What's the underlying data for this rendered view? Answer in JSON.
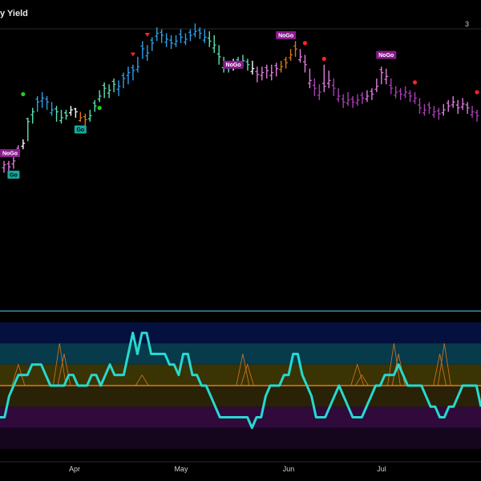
{
  "header": {
    "title": "y Yield",
    "right_label": "3"
  },
  "chart_data": [
    {
      "type": "price-bars",
      "title": "y Yield",
      "x_ticks": [
        "Apr",
        "May",
        "Jun",
        "Jul"
      ],
      "y_range": [
        0,
        100
      ],
      "bars": [
        {
          "c": 23,
          "h": 25,
          "l": 19,
          "color": "#e27be0"
        },
        {
          "c": 22,
          "h": 25,
          "l": 19,
          "color": "#e27be0"
        },
        {
          "c": 25,
          "h": 28,
          "l": 21,
          "color": "#e27be0"
        },
        {
          "c": 30,
          "h": 33,
          "l": 27,
          "color": "#e27be0"
        },
        {
          "c": 34,
          "h": 36,
          "l": 31,
          "color": "#ffffff"
        },
        {
          "c": 45,
          "h": 47,
          "l": 35,
          "color": "#5be3b4"
        },
        {
          "c": 50,
          "h": 52,
          "l": 44,
          "color": "#5be3b4"
        },
        {
          "c": 55,
          "h": 58,
          "l": 50,
          "color": "#2f9ee8"
        },
        {
          "c": 57,
          "h": 60,
          "l": 52,
          "color": "#2f9ee8"
        },
        {
          "c": 55,
          "h": 58,
          "l": 51,
          "color": "#2f9ee8"
        },
        {
          "c": 51,
          "h": 55,
          "l": 48,
          "color": "#2f9ee8"
        },
        {
          "c": 50,
          "h": 53,
          "l": 45,
          "color": "#5be3b4"
        },
        {
          "c": 47,
          "h": 51,
          "l": 44,
          "color": "#5be3b4"
        },
        {
          "c": 48,
          "h": 51,
          "l": 46,
          "color": "#5be3b4"
        },
        {
          "c": 51,
          "h": 53,
          "l": 48,
          "color": "#ffffff"
        },
        {
          "c": 50,
          "h": 52,
          "l": 47,
          "color": "#ffffff"
        },
        {
          "c": 47,
          "h": 50,
          "l": 45,
          "color": "#d9771e"
        },
        {
          "c": 46,
          "h": 49,
          "l": 43,
          "color": "#d9771e"
        },
        {
          "c": 48,
          "h": 51,
          "l": 45,
          "color": "#5be3b4"
        },
        {
          "c": 53,
          "h": 56,
          "l": 50,
          "color": "#5be3b4"
        },
        {
          "c": 58,
          "h": 61,
          "l": 55,
          "color": "#5be3b4"
        },
        {
          "c": 62,
          "h": 65,
          "l": 57,
          "color": "#5be3b4"
        },
        {
          "c": 61,
          "h": 64,
          "l": 57,
          "color": "#5be3b4"
        },
        {
          "c": 64,
          "h": 67,
          "l": 60,
          "color": "#5be3b4"
        },
        {
          "c": 63,
          "h": 66,
          "l": 58,
          "color": "#2f9ee8"
        },
        {
          "c": 67,
          "h": 70,
          "l": 62,
          "color": "#2f9ee8"
        },
        {
          "c": 70,
          "h": 73,
          "l": 64,
          "color": "#2f9ee8"
        },
        {
          "c": 71,
          "h": 74,
          "l": 66,
          "color": "#2f9ee8"
        },
        {
          "c": 73,
          "h": 78,
          "l": 70,
          "color": "#2f9ee8"
        },
        {
          "c": 82,
          "h": 86,
          "l": 77,
          "color": "#2f9ee8"
        },
        {
          "c": 80,
          "h": 84,
          "l": 76,
          "color": "#2f9ee8"
        },
        {
          "c": 85,
          "h": 88,
          "l": 81,
          "color": "#2f9ee8"
        },
        {
          "c": 90,
          "h": 93,
          "l": 86,
          "color": "#2f9ee8"
        },
        {
          "c": 89,
          "h": 92,
          "l": 85,
          "color": "#2f9ee8"
        },
        {
          "c": 87,
          "h": 90,
          "l": 83,
          "color": "#2f9ee8"
        },
        {
          "c": 85,
          "h": 89,
          "l": 82,
          "color": "#2f9ee8"
        },
        {
          "c": 86,
          "h": 89,
          "l": 83,
          "color": "#2f9ee8"
        },
        {
          "c": 88,
          "h": 92,
          "l": 85,
          "color": "#2f9ee8"
        },
        {
          "c": 87,
          "h": 90,
          "l": 84,
          "color": "#2f9ee8"
        },
        {
          "c": 89,
          "h": 92,
          "l": 86,
          "color": "#2f9ee8"
        },
        {
          "c": 91,
          "h": 95,
          "l": 88,
          "color": "#2f9ee8"
        },
        {
          "c": 90,
          "h": 93,
          "l": 87,
          "color": "#2f9ee8"
        },
        {
          "c": 88,
          "h": 92,
          "l": 85,
          "color": "#2f9ee8"
        },
        {
          "c": 86,
          "h": 91,
          "l": 83,
          "color": "#5be3b4"
        },
        {
          "c": 84,
          "h": 89,
          "l": 80,
          "color": "#5be3b4"
        },
        {
          "c": 78,
          "h": 84,
          "l": 74,
          "color": "#5be3b4"
        },
        {
          "c": 74,
          "h": 78,
          "l": 70,
          "color": "#5be3b4"
        },
        {
          "c": 73,
          "h": 76,
          "l": 70,
          "color": "#5be3b4"
        },
        {
          "c": 74,
          "h": 77,
          "l": 71,
          "color": "#ffffff"
        },
        {
          "c": 75,
          "h": 78,
          "l": 72,
          "color": "#5be3b4"
        },
        {
          "c": 76,
          "h": 79,
          "l": 73,
          "color": "#5be3b4"
        },
        {
          "c": 74,
          "h": 77,
          "l": 71,
          "color": "#5be3b4"
        },
        {
          "c": 72,
          "h": 76,
          "l": 69,
          "color": "#ffffff"
        },
        {
          "c": 69,
          "h": 73,
          "l": 65,
          "color": "#e27be0"
        },
        {
          "c": 70,
          "h": 73,
          "l": 66,
          "color": "#e27be0"
        },
        {
          "c": 71,
          "h": 74,
          "l": 67,
          "color": "#e27be0"
        },
        {
          "c": 70,
          "h": 74,
          "l": 66,
          "color": "#e27be0"
        },
        {
          "c": 72,
          "h": 75,
          "l": 68,
          "color": "#e27be0"
        },
        {
          "c": 73,
          "h": 76,
          "l": 70,
          "color": "#d9771e"
        },
        {
          "c": 75,
          "h": 78,
          "l": 72,
          "color": "#d9771e"
        },
        {
          "c": 79,
          "h": 82,
          "l": 76,
          "color": "#d9771e"
        },
        {
          "c": 82,
          "h": 86,
          "l": 78,
          "color": "#d9771e"
        },
        {
          "c": 78,
          "h": 82,
          "l": 75,
          "color": "#e27be0"
        },
        {
          "c": 74,
          "h": 79,
          "l": 70,
          "color": "#e27be0"
        },
        {
          "c": 66,
          "h": 72,
          "l": 62,
          "color": "#e27be0"
        },
        {
          "c": 62,
          "h": 67,
          "l": 58,
          "color": "#a93fb4"
        },
        {
          "c": 60,
          "h": 64,
          "l": 56,
          "color": "#a93fb4"
        },
        {
          "c": 63,
          "h": 74,
          "l": 60,
          "color": "#e27be0"
        },
        {
          "c": 66,
          "h": 71,
          "l": 62,
          "color": "#e27be0"
        },
        {
          "c": 62,
          "h": 67,
          "l": 58,
          "color": "#a93fb4"
        },
        {
          "c": 58,
          "h": 62,
          "l": 55,
          "color": "#a93fb4"
        },
        {
          "c": 55,
          "h": 59,
          "l": 52,
          "color": "#a93fb4"
        },
        {
          "c": 56,
          "h": 60,
          "l": 53,
          "color": "#a93fb4"
        },
        {
          "c": 55,
          "h": 58,
          "l": 52,
          "color": "#a93fb4"
        },
        {
          "c": 56,
          "h": 59,
          "l": 53,
          "color": "#a93fb4"
        },
        {
          "c": 57,
          "h": 60,
          "l": 54,
          "color": "#a93fb4"
        },
        {
          "c": 58,
          "h": 61,
          "l": 55,
          "color": "#e27be0"
        },
        {
          "c": 59,
          "h": 62,
          "l": 56,
          "color": "#e27be0"
        },
        {
          "c": 63,
          "h": 67,
          "l": 60,
          "color": "#e27be0"
        },
        {
          "c": 70,
          "h": 73,
          "l": 64,
          "color": "#e27be0"
        },
        {
          "c": 68,
          "h": 72,
          "l": 64,
          "color": "#e27be0"
        },
        {
          "c": 62,
          "h": 67,
          "l": 59,
          "color": "#a93fb4"
        },
        {
          "c": 60,
          "h": 63,
          "l": 57,
          "color": "#a93fb4"
        },
        {
          "c": 59,
          "h": 62,
          "l": 56,
          "color": "#a93fb4"
        },
        {
          "c": 60,
          "h": 63,
          "l": 57,
          "color": "#a93fb4"
        },
        {
          "c": 58,
          "h": 61,
          "l": 55,
          "color": "#a93fb4"
        },
        {
          "c": 57,
          "h": 60,
          "l": 54,
          "color": "#a93fb4"
        },
        {
          "c": 52,
          "h": 57,
          "l": 49,
          "color": "#a93fb4"
        },
        {
          "c": 51,
          "h": 54,
          "l": 48,
          "color": "#a93fb4"
        },
        {
          "c": 52,
          "h": 55,
          "l": 49,
          "color": "#a93fb4"
        },
        {
          "c": 50,
          "h": 53,
          "l": 47,
          "color": "#a93fb4"
        },
        {
          "c": 49,
          "h": 52,
          "l": 46,
          "color": "#a93fb4"
        },
        {
          "c": 51,
          "h": 54,
          "l": 48,
          "color": "#e27be0"
        },
        {
          "c": 53,
          "h": 56,
          "l": 50,
          "color": "#e27be0"
        },
        {
          "c": 55,
          "h": 58,
          "l": 52,
          "color": "#e27be0"
        },
        {
          "c": 52,
          "h": 56,
          "l": 49,
          "color": "#e27be0"
        },
        {
          "c": 54,
          "h": 57,
          "l": 51,
          "color": "#e27be0"
        },
        {
          "c": 52,
          "h": 55,
          "l": 49,
          "color": "#e27be0"
        },
        {
          "c": 50,
          "h": 53,
          "l": 47,
          "color": "#a93fb4"
        },
        {
          "c": 48,
          "h": 51,
          "l": 45,
          "color": "#a93fb4"
        }
      ],
      "markers": [
        {
          "type": "dot",
          "i": 4,
          "value": 59,
          "color": "#22cc22"
        },
        {
          "type": "dot",
          "i": 20,
          "value": 52,
          "color": "#22cc22"
        },
        {
          "type": "down-arrow",
          "i": 30,
          "value": 89,
          "color": "#ff2222"
        },
        {
          "type": "down-arrow",
          "i": 27,
          "value": 79,
          "color": "#ff2222"
        },
        {
          "type": "dot",
          "i": 63,
          "value": 85,
          "color": "#ff2222"
        },
        {
          "type": "dot",
          "i": 67,
          "value": 77,
          "color": "#ff2222"
        },
        {
          "type": "dot",
          "i": 86,
          "value": 65,
          "color": "#ff2222"
        },
        {
          "type": "dot",
          "i": 99,
          "value": 60,
          "color": "#ff2222"
        }
      ],
      "badges": [
        {
          "text": "NoGo",
          "i": 0,
          "value": 29,
          "bg": "#8a1a8e",
          "fg": "#ffffff"
        },
        {
          "text": "Go",
          "i": 2,
          "value": 18,
          "bg": "#17a9a0",
          "fg": "#000000"
        },
        {
          "text": "Go",
          "i": 16,
          "value": 41,
          "bg": "#17a9a0",
          "fg": "#000000"
        },
        {
          "text": "NoGo",
          "i": 48,
          "value": 74,
          "bg": "#8a1a8e",
          "fg": "#ffffff"
        },
        {
          "text": "NoGo",
          "i": 59,
          "value": 89,
          "bg": "#8a1a8e",
          "fg": "#ffffff"
        },
        {
          "text": "NoGo",
          "i": 80,
          "value": 79,
          "bg": "#8a1a8e",
          "fg": "#ffffff"
        }
      ]
    },
    {
      "type": "oscillator",
      "y_range": [
        -6,
        6
      ],
      "zones": [
        {
          "from": 4,
          "to": 6,
          "color": "#04103d"
        },
        {
          "from": 2,
          "to": 4,
          "color": "#073a4a"
        },
        {
          "from": 0,
          "to": 2,
          "color": "#3a3304"
        },
        {
          "from": -2,
          "to": 0,
          "color": "#2a2206"
        },
        {
          "from": -4,
          "to": -2,
          "color": "#2f0a3b"
        },
        {
          "from": -6,
          "to": -4,
          "color": "#15051d"
        }
      ],
      "zero_line_color": "#e07a1e",
      "line_color": "#26d9d0",
      "values": [
        -3,
        -3,
        -1,
        0,
        1,
        1,
        1,
        2,
        2,
        2,
        1,
        0,
        0,
        0,
        0,
        1,
        1,
        0,
        0,
        0,
        1,
        1,
        0,
        1,
        2,
        1,
        1,
        1,
        3,
        5,
        3,
        5,
        5,
        3,
        3,
        3,
        3,
        2,
        2,
        1,
        3,
        3,
        1,
        1,
        0,
        0,
        -1,
        -2,
        -3,
        -3,
        -3,
        -3,
        -3,
        -3,
        -3,
        -4,
        -3,
        -3,
        -1,
        0,
        0,
        0,
        1,
        1,
        3,
        3,
        1,
        0,
        -1,
        -3,
        -3,
        -3,
        -2,
        -1,
        0,
        -1,
        -2,
        -3,
        -3,
        -3,
        -2,
        -1,
        0,
        0,
        1,
        1,
        1,
        2,
        1,
        0,
        0,
        0,
        0,
        -1,
        -2,
        -2,
        -3,
        -3,
        -2,
        -2,
        -1,
        0,
        0,
        0,
        0,
        -2
      ],
      "spikes": [
        {
          "i": 4,
          "value": 2
        },
        {
          "i": 13,
          "value": 4
        },
        {
          "i": 14,
          "value": 3
        },
        {
          "i": 31,
          "value": 1
        },
        {
          "i": 53,
          "value": 3
        },
        {
          "i": 54,
          "value": 2
        },
        {
          "i": 78,
          "value": 2
        },
        {
          "i": 79,
          "value": 1
        },
        {
          "i": 86,
          "value": 4
        },
        {
          "i": 87,
          "value": 3
        },
        {
          "i": 96,
          "value": 3
        },
        {
          "i": 97,
          "value": 4
        }
      ]
    }
  ]
}
